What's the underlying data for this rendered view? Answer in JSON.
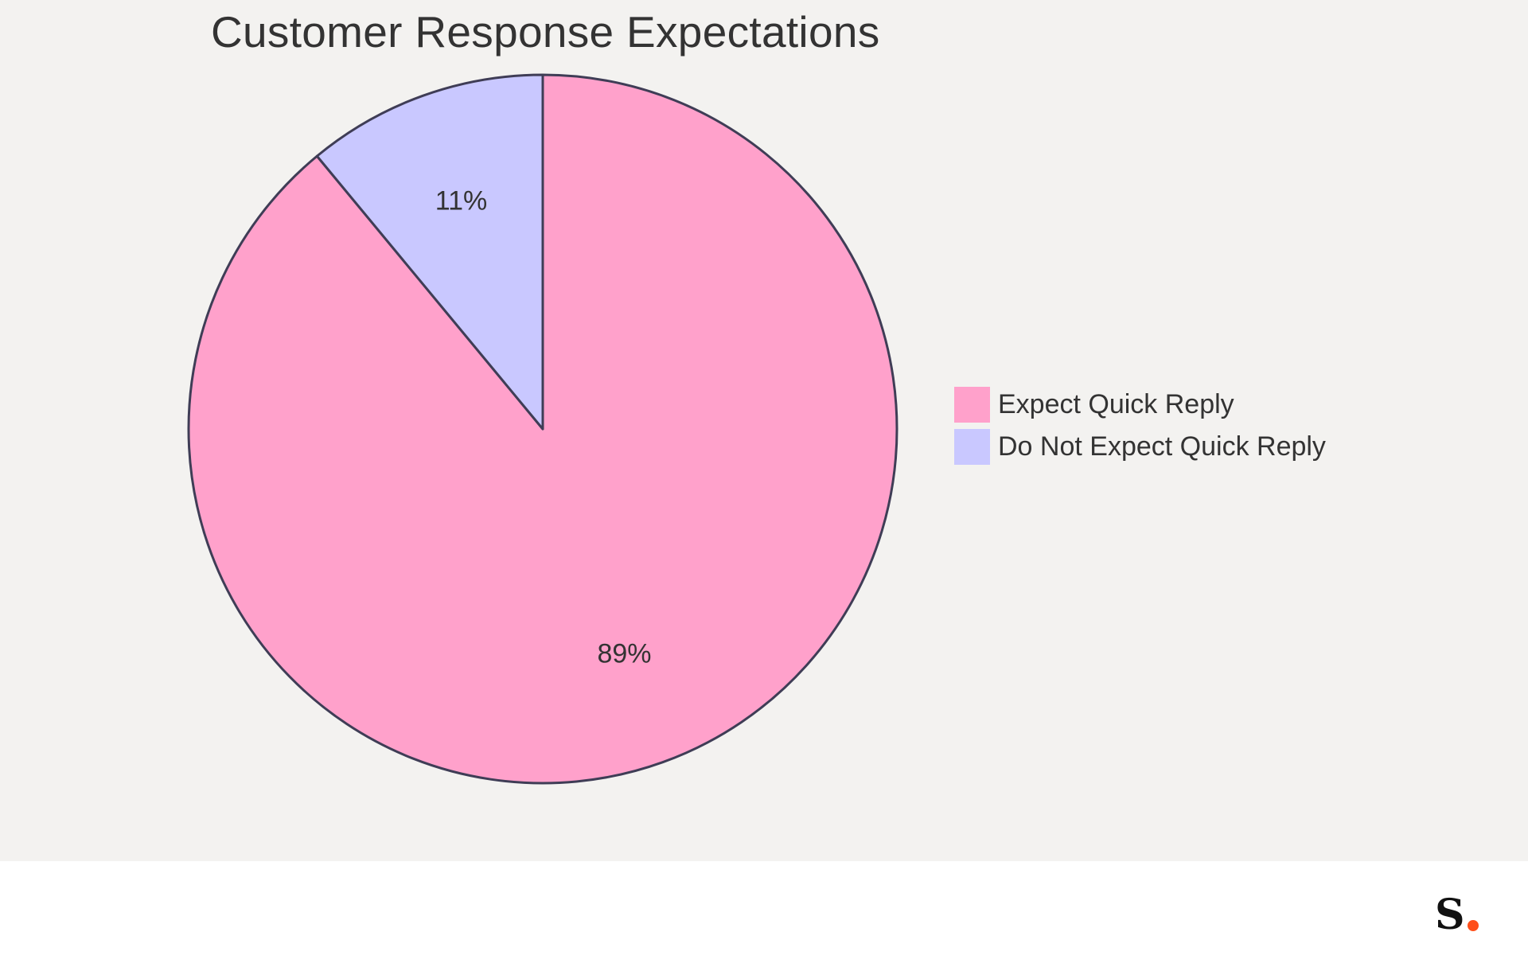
{
  "chart_data": {
    "type": "pie",
    "title": "Customer Response Expectations",
    "slices": [
      {
        "label": "Expect Quick Reply",
        "value": 89,
        "display": "89%",
        "color": "#ffa1cb"
      },
      {
        "label": "Do Not Expect Quick Reply",
        "value": 11,
        "display": "11%",
        "color": "#c9c8ff"
      }
    ],
    "start_angle": "12 o'clock",
    "direction": "clockwise",
    "legend_placement": "right",
    "stroke_color": "#3f3d56"
  },
  "footer": {
    "logo_letter": "S",
    "logo_dot_color": "#ff4f1a"
  }
}
